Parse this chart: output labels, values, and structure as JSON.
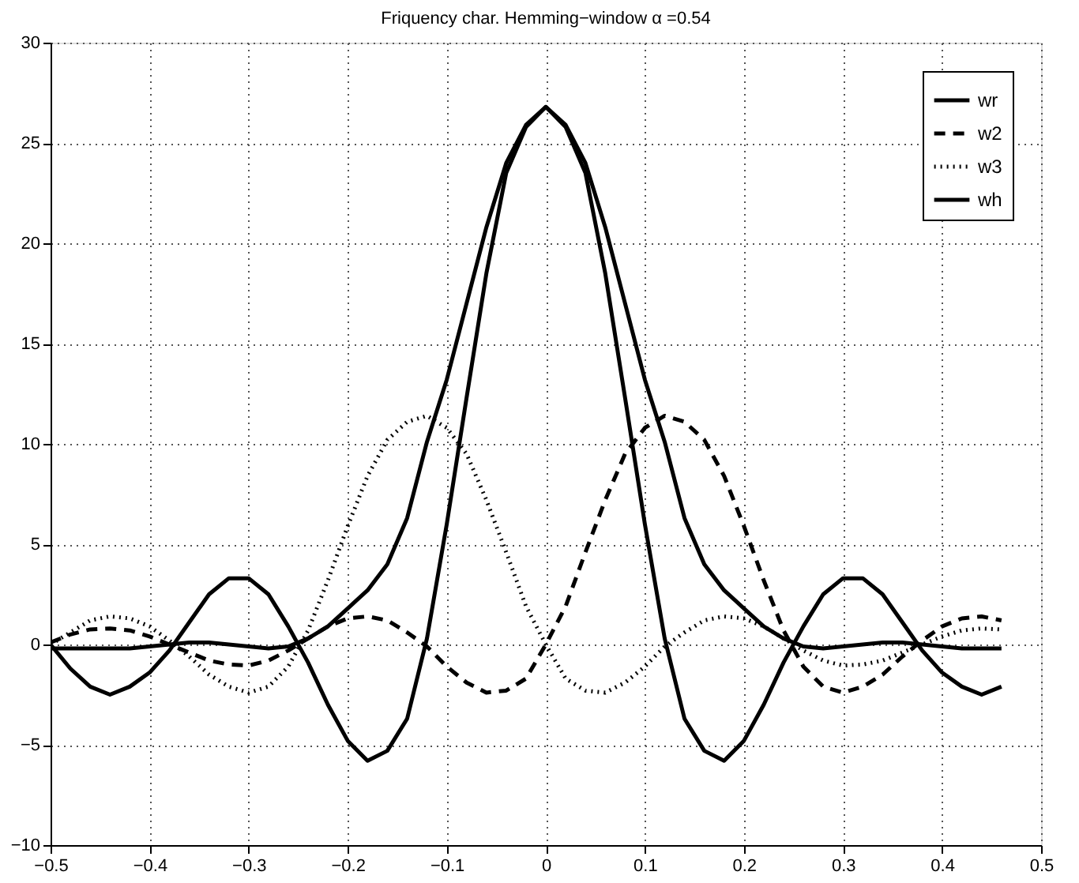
{
  "chart_data": {
    "type": "line",
    "title": "Friquency char. Hemming−window α =0.54",
    "x": [
      -0.5,
      -0.48,
      -0.46,
      -0.44,
      -0.42,
      -0.4,
      -0.38,
      -0.36,
      -0.34,
      -0.32,
      -0.3,
      -0.28,
      -0.26,
      -0.24,
      -0.22,
      -0.2,
      -0.18,
      -0.16,
      -0.14,
      -0.12,
      -0.1,
      -0.08,
      -0.06,
      -0.04,
      -0.02,
      0,
      0.02,
      0.04,
      0.06,
      0.08,
      0.1,
      0.12,
      0.14,
      0.16,
      0.18,
      0.2,
      0.22,
      0.24,
      0.26,
      0.28,
      0.3,
      0.32,
      0.34,
      0.36,
      0.38,
      0.4,
      0.42,
      0.44,
      0.46
    ],
    "series": [
      {
        "name": "wr",
        "color": "#000000",
        "line_style": "solid",
        "values": [
          0.0,
          -1.2,
          -2.1,
          -2.5,
          -2.1,
          -1.4,
          -0.3,
          1.1,
          2.5,
          3.3,
          3.3,
          2.5,
          0.9,
          -0.9,
          -3.0,
          -4.8,
          -5.8,
          -5.3,
          -3.7,
          0.3,
          6.0,
          12.3,
          18.5,
          23.5,
          25.8,
          26.8,
          25.8,
          23.5,
          18.5,
          12.3,
          6.0,
          0.3,
          -3.7,
          -5.3,
          -5.8,
          -4.8,
          -3.0,
          -0.9,
          0.9,
          2.5,
          3.3,
          3.3,
          2.5,
          1.1,
          -0.3,
          -1.4,
          -2.1,
          -2.5,
          -2.1
        ]
      },
      {
        "name": "w2",
        "color": "#000000",
        "line_style": "dashed",
        "values": [
          0.1,
          0.5,
          0.75,
          0.8,
          0.7,
          0.4,
          0.0,
          -0.4,
          -0.8,
          -1.0,
          -1.05,
          -0.8,
          -0.3,
          0.3,
          0.9,
          1.3,
          1.4,
          1.2,
          0.6,
          -0.1,
          -1.1,
          -1.9,
          -2.4,
          -2.3,
          -1.7,
          0.0,
          1.9,
          4.6,
          7.2,
          9.5,
          10.8,
          11.4,
          11.1,
          10.2,
          8.4,
          5.9,
          3.2,
          0.7,
          -1.1,
          -2.1,
          -2.4,
          -2.1,
          -1.5,
          -0.6,
          0.2,
          0.9,
          1.3,
          1.4,
          1.2
        ]
      },
      {
        "name": "w3",
        "color": "#000000",
        "line_style": "dotted",
        "values": [
          0.0,
          0.6,
          1.2,
          1.4,
          1.3,
          0.9,
          0.2,
          -0.6,
          -1.5,
          -2.1,
          -2.4,
          -2.1,
          -1.1,
          0.7,
          3.2,
          5.9,
          8.4,
          10.2,
          11.1,
          11.4,
          10.8,
          9.5,
          7.2,
          4.6,
          1.9,
          0.0,
          -1.7,
          -2.3,
          -2.4,
          -1.9,
          -1.1,
          -0.1,
          0.6,
          1.2,
          1.4,
          1.3,
          0.9,
          0.3,
          -0.3,
          -0.8,
          -1.05,
          -1.0,
          -0.8,
          -0.4,
          0.0,
          0.4,
          0.7,
          0.8,
          0.75
        ]
      },
      {
        "name": "wh",
        "color": "#000000",
        "line_style": "solid",
        "values": [
          -0.2,
          -0.2,
          -0.2,
          -0.2,
          -0.2,
          -0.1,
          0.0,
          0.1,
          0.1,
          0.0,
          -0.1,
          -0.2,
          -0.1,
          0.3,
          0.9,
          1.8,
          2.7,
          4.0,
          6.3,
          10.1,
          13.2,
          17.0,
          20.8,
          24.0,
          25.9,
          26.8,
          25.9,
          24.0,
          20.8,
          17.0,
          13.2,
          10.1,
          6.3,
          4.0,
          2.7,
          1.8,
          0.9,
          0.3,
          -0.1,
          -0.2,
          -0.1,
          0.0,
          0.1,
          0.1,
          0.0,
          -0.1,
          -0.2,
          -0.2,
          -0.2
        ]
      }
    ],
    "xlim": [
      -0.5,
      0.5
    ],
    "xticks": [
      -0.5,
      -0.4,
      -0.3,
      -0.2,
      -0.1,
      0,
      0.1,
      0.2,
      0.3,
      0.4,
      0.5
    ],
    "ylim": [
      -10,
      30
    ],
    "yticks": [
      -10,
      -5,
      0,
      5,
      10,
      15,
      20,
      25,
      30
    ],
    "grid": true,
    "legend": "top right",
    "marker": "none"
  }
}
